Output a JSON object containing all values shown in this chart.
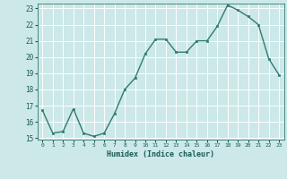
{
  "x": [
    0,
    1,
    2,
    3,
    4,
    5,
    6,
    7,
    8,
    9,
    10,
    11,
    12,
    13,
    14,
    15,
    16,
    17,
    18,
    19,
    20,
    21,
    22,
    23
  ],
  "y": [
    16.7,
    15.3,
    15.4,
    16.8,
    15.3,
    15.1,
    15.3,
    16.5,
    18.0,
    18.7,
    20.2,
    21.1,
    21.1,
    20.3,
    20.3,
    21.0,
    21.0,
    21.9,
    23.2,
    22.9,
    22.5,
    22.0,
    19.9,
    18.9
  ],
  "xlabel": "Humidex (Indice chaleur)",
  "ylim": [
    15,
    23
  ],
  "xlim": [
    -0.5,
    23.5
  ],
  "yticks": [
    15,
    16,
    17,
    18,
    19,
    20,
    21,
    22,
    23
  ],
  "xticks": [
    0,
    1,
    2,
    3,
    4,
    5,
    6,
    7,
    8,
    9,
    10,
    11,
    12,
    13,
    14,
    15,
    16,
    17,
    18,
    19,
    20,
    21,
    22,
    23
  ],
  "line_color": "#2e7d6e",
  "marker_color": "#2e7d6e",
  "bg_color": "#cce8e8",
  "grid_color": "#ffffff",
  "axis_color": "#2e7d6e",
  "label_color": "#1a5c52",
  "tick_color": "#1a5c52"
}
